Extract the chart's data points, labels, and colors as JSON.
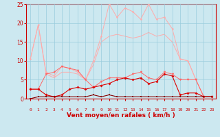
{
  "x": [
    0,
    1,
    2,
    3,
    4,
    5,
    6,
    7,
    8,
    9,
    10,
    11,
    12,
    13,
    14,
    15,
    16,
    17,
    18,
    19,
    20,
    21,
    22,
    23
  ],
  "series": {
    "rafales_max": [
      10.5,
      19.5,
      7.0,
      6.0,
      8.5,
      8.0,
      7.0,
      5.0,
      10.0,
      16.5,
      25.0,
      21.5,
      24.0,
      23.0,
      21.0,
      25.0,
      21.0,
      21.5,
      18.5,
      10.5,
      10.0,
      5.0,
      0.5,
      0.5
    ],
    "rafales_mean": [
      10.5,
      19.5,
      6.5,
      5.5,
      7.0,
      7.0,
      6.5,
      5.0,
      9.0,
      15.0,
      16.5,
      17.0,
      16.5,
      16.0,
      16.5,
      17.5,
      16.5,
      17.0,
      15.0,
      10.5,
      10.0,
      5.0,
      0.5,
      0.5
    ],
    "vent_moyen_max": [
      2.5,
      2.5,
      6.5,
      7.0,
      8.5,
      8.0,
      7.5,
      5.0,
      3.0,
      4.5,
      5.5,
      5.5,
      5.5,
      6.5,
      7.0,
      5.5,
      5.0,
      7.0,
      6.5,
      5.0,
      5.0,
      5.0,
      0.5,
      0.5
    ],
    "vent_moyen": [
      2.5,
      2.5,
      1.0,
      0.5,
      1.0,
      2.5,
      3.0,
      2.5,
      3.0,
      3.5,
      4.0,
      5.0,
      5.5,
      5.0,
      5.5,
      4.0,
      4.5,
      6.5,
      6.0,
      1.0,
      1.5,
      1.5,
      0.5,
      0.5
    ],
    "vent_min": [
      0.0,
      0.5,
      0.5,
      0.5,
      0.5,
      0.5,
      0.5,
      0.5,
      1.0,
      0.5,
      1.0,
      0.5,
      0.5,
      0.5,
      0.5,
      0.5,
      0.5,
      0.5,
      0.5,
      0.5,
      0.5,
      0.5,
      0.5,
      0.5
    ]
  },
  "colors": {
    "rafales_max": "#ffaaaa",
    "rafales_mean": "#ffaaaa",
    "vent_moyen_max": "#ff6666",
    "vent_moyen": "#dd0000",
    "vent_min": "#880000"
  },
  "background_color": "#cce8f0",
  "grid_color": "#99ccdd",
  "xlabel": "Vent moyen/en rafales ( km/h )",
  "xlim": [
    -0.5,
    23.5
  ],
  "ylim": [
    0,
    25
  ],
  "yticks": [
    0,
    5,
    10,
    15,
    20,
    25
  ],
  "figsize": [
    3.2,
    2.0
  ],
  "dpi": 100
}
